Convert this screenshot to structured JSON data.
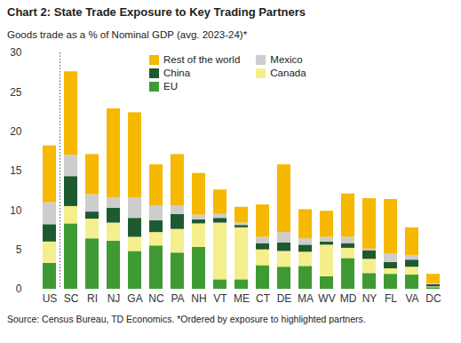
{
  "chart_data": {
    "type": "bar",
    "title": "Chart 2: State Trade Exposure to Key Trading Partners",
    "subtitle": "Goods trade as a % of Nominal GDP (avg. 2023-24)*",
    "caption": "Source: Census Bureau, TD Economics. *Ordered by exposure to highlighted partners.",
    "categories": [
      "US",
      "SC",
      "RI",
      "NJ",
      "GA",
      "NC",
      "PA",
      "NH",
      "VT",
      "ME",
      "CT",
      "DE",
      "MA",
      "WV",
      "MD",
      "NY",
      "FL",
      "VA",
      "DC"
    ],
    "series": [
      {
        "name": "EU",
        "color": "#3f9a33",
        "values": [
          3.3,
          8.3,
          6.4,
          6.1,
          4.8,
          5.5,
          4.6,
          5.3,
          1.2,
          1.2,
          3.0,
          2.8,
          2.9,
          1.6,
          3.9,
          2.0,
          1.9,
          1.8,
          0.2
        ]
      },
      {
        "name": "Canada",
        "color": "#f4ef8c",
        "values": [
          2.7,
          2.2,
          2.5,
          2.3,
          1.8,
          1.7,
          3.0,
          3.0,
          7.2,
          6.6,
          2.0,
          2.0,
          1.8,
          4.0,
          1.3,
          1.8,
          0.7,
          1.0,
          0.1
        ]
      },
      {
        "name": "China",
        "color": "#1e5a30",
        "values": [
          2.2,
          3.8,
          0.9,
          1.9,
          2.4,
          1.5,
          1.9,
          0.5,
          0.6,
          0.3,
          0.8,
          1.1,
          0.9,
          0.4,
          0.6,
          1.1,
          0.8,
          0.9,
          0.3
        ]
      },
      {
        "name": "Mexico",
        "color": "#cdcdcd",
        "values": [
          2.8,
          2.7,
          2.2,
          1.3,
          2.6,
          1.9,
          1.1,
          0.6,
          0.5,
          0.3,
          0.8,
          1.3,
          0.8,
          0.6,
          0.8,
          0.2,
          1.1,
          0.6,
          0.1
        ]
      },
      {
        "name": "Rest of the world",
        "color": "#f6b800",
        "values": [
          7.2,
          10.6,
          5.1,
          11.3,
          10.8,
          5.2,
          6.5,
          5.3,
          3.1,
          2.0,
          4.1,
          8.6,
          3.7,
          3.3,
          5.5,
          6.4,
          6.9,
          3.5,
          1.2
        ]
      }
    ],
    "ylim": [
      0,
      30
    ],
    "yticks": [
      0,
      5,
      10,
      15,
      20,
      25,
      30
    ],
    "stacked": true,
    "grid": false,
    "legend": "top"
  }
}
